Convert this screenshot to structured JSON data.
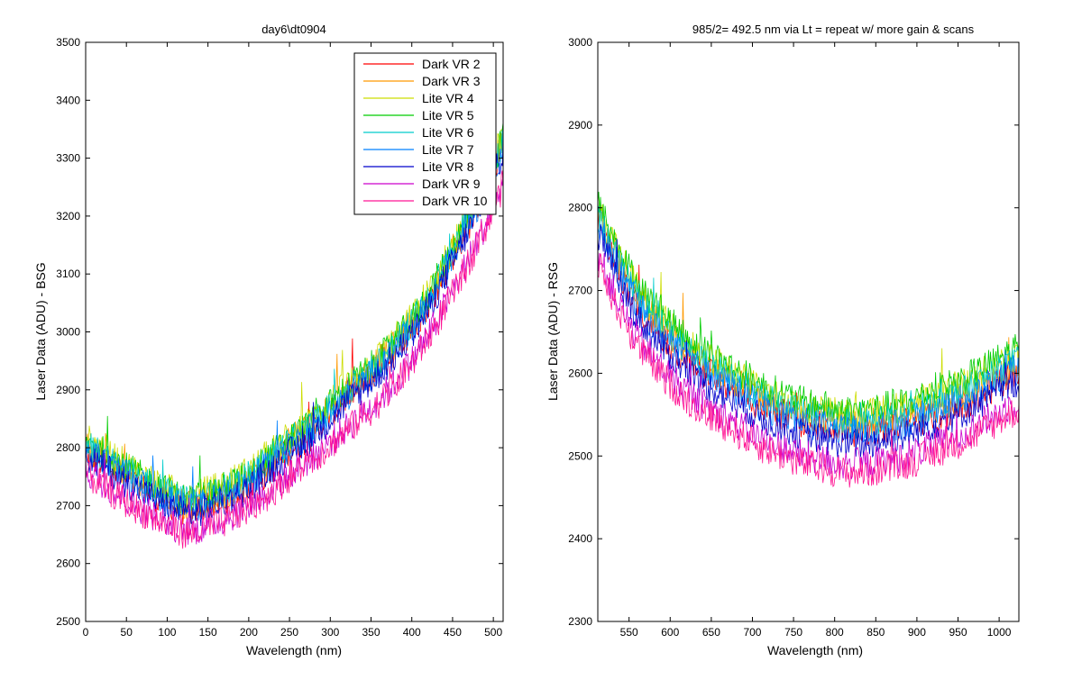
{
  "figure": {
    "charts": [
      {
        "title": "day6\\dt0904",
        "xlabel": "Wavelength (nm)",
        "ylabel": "Laser Data (ADU) - BSG"
      },
      {
        "title": "985/2= 492.5 nm via Lt = repeat w/ more gain & scans",
        "xlabel": "Wavelength (nm)",
        "ylabel": "Laser Data (ADU) - RSG"
      }
    ]
  },
  "chart_data": [
    {
      "type": "line",
      "title": "day6\\dt0904",
      "xlabel": "Wavelength (nm)",
      "ylabel": "Laser Data (ADU) - BSG",
      "xlim": [
        0,
        512
      ],
      "ylim": [
        2500,
        3500
      ],
      "xticks": [
        0,
        50,
        100,
        150,
        200,
        250,
        300,
        350,
        400,
        450,
        500
      ],
      "yticks": [
        2500,
        2600,
        2700,
        2800,
        2900,
        3000,
        3100,
        3200,
        3300,
        3400,
        3500
      ],
      "legend": {
        "placement": "top-right"
      },
      "grid": false,
      "x": [
        0,
        25,
        50,
        75,
        100,
        125,
        150,
        175,
        200,
        225,
        250,
        275,
        300,
        325,
        350,
        375,
        400,
        425,
        450,
        475,
        500,
        512
      ],
      "series": [
        {
          "name": "Dark VR 2",
          "color": "#ff0000",
          "values": [
            2790,
            2770,
            2745,
            2725,
            2705,
            2690,
            2700,
            2715,
            2735,
            2760,
            2795,
            2820,
            2860,
            2895,
            2925,
            2960,
            3005,
            3060,
            3130,
            3200,
            3275,
            3320
          ]
        },
        {
          "name": "Dark VR 3",
          "color": "#ff9900",
          "values": [
            2800,
            2780,
            2755,
            2735,
            2715,
            2700,
            2710,
            2725,
            2745,
            2775,
            2815,
            2840,
            2870,
            2905,
            2935,
            2970,
            3015,
            3070,
            3140,
            3210,
            3285,
            3330
          ]
        },
        {
          "name": "Lite VR 4",
          "color": "#ccdd00",
          "values": [
            2815,
            2795,
            2770,
            2750,
            2730,
            2715,
            2725,
            2740,
            2760,
            2790,
            2820,
            2845,
            2880,
            2915,
            2945,
            2980,
            3025,
            3080,
            3150,
            3220,
            3295,
            3340
          ]
        },
        {
          "name": "Lite VR 5",
          "color": "#00cc00",
          "values": [
            2810,
            2790,
            2765,
            2745,
            2725,
            2710,
            2720,
            2735,
            2755,
            2785,
            2815,
            2840,
            2875,
            2910,
            2940,
            2975,
            3020,
            3075,
            3145,
            3215,
            3290,
            3335
          ]
        },
        {
          "name": "Lite VR 6",
          "color": "#00cccc",
          "values": [
            2805,
            2785,
            2760,
            2740,
            2720,
            2705,
            2715,
            2730,
            2750,
            2780,
            2810,
            2835,
            2870,
            2905,
            2935,
            2970,
            3015,
            3070,
            3140,
            3210,
            3285,
            3330
          ]
        },
        {
          "name": "Lite VR 7",
          "color": "#0080ff",
          "values": [
            2795,
            2775,
            2750,
            2730,
            2710,
            2695,
            2705,
            2720,
            2740,
            2770,
            2800,
            2825,
            2860,
            2895,
            2925,
            2960,
            3005,
            3060,
            3130,
            3200,
            3275,
            3320
          ]
        },
        {
          "name": "Lite VR 8",
          "color": "#0000cc",
          "values": [
            2785,
            2765,
            2740,
            2720,
            2700,
            2685,
            2695,
            2710,
            2730,
            2760,
            2790,
            2815,
            2850,
            2885,
            2915,
            2950,
            2995,
            3050,
            3120,
            3190,
            3265,
            3310
          ]
        },
        {
          "name": "Dark VR 9",
          "color": "#cc00cc",
          "values": [
            2760,
            2735,
            2710,
            2690,
            2670,
            2655,
            2665,
            2680,
            2700,
            2725,
            2755,
            2780,
            2810,
            2840,
            2870,
            2905,
            2950,
            3005,
            3070,
            3140,
            3215,
            3260
          ]
        },
        {
          "name": "Dark VR 10",
          "color": "#ff1493",
          "values": [
            2755,
            2730,
            2705,
            2685,
            2665,
            2650,
            2660,
            2675,
            2695,
            2720,
            2750,
            2775,
            2805,
            2835,
            2865,
            2900,
            2945,
            3000,
            3065,
            3135,
            3210,
            3255
          ]
        }
      ]
    },
    {
      "type": "line",
      "title": "985/2= 492.5 nm via Lt = repeat w/ more gain & scans",
      "xlabel": "Wavelength (nm)",
      "ylabel": "Laser Data (ADU) - RSG",
      "xlim": [
        512,
        1024
      ],
      "ylim": [
        2300,
        3000
      ],
      "xticks": [
        550,
        600,
        650,
        700,
        750,
        800,
        850,
        900,
        950,
        1000
      ],
      "yticks": [
        2300,
        2400,
        2500,
        2600,
        2700,
        2800,
        2900,
        3000
      ],
      "grid": false,
      "x": [
        512,
        537,
        562,
        587,
        612,
        637,
        662,
        687,
        712,
        737,
        762,
        787,
        812,
        837,
        862,
        887,
        912,
        937,
        962,
        987,
        1012,
        1024
      ],
      "series": [
        {
          "color": "#ff0000",
          "values": [
            2785,
            2725,
            2680,
            2650,
            2625,
            2605,
            2590,
            2575,
            2560,
            2550,
            2540,
            2535,
            2530,
            2530,
            2535,
            2540,
            2545,
            2555,
            2565,
            2580,
            2595,
            2600
          ]
        },
        {
          "color": "#ff9900",
          "values": [
            2795,
            2735,
            2690,
            2660,
            2635,
            2615,
            2600,
            2585,
            2570,
            2560,
            2550,
            2545,
            2540,
            2540,
            2545,
            2550,
            2555,
            2565,
            2575,
            2590,
            2605,
            2610
          ]
        },
        {
          "color": "#ccdd00",
          "values": [
            2800,
            2745,
            2700,
            2670,
            2645,
            2625,
            2610,
            2595,
            2580,
            2570,
            2560,
            2555,
            2550,
            2550,
            2555,
            2560,
            2570,
            2580,
            2590,
            2605,
            2620,
            2625
          ]
        },
        {
          "color": "#00cc00",
          "values": [
            2805,
            2750,
            2705,
            2675,
            2650,
            2630,
            2615,
            2600,
            2585,
            2575,
            2565,
            2560,
            2555,
            2555,
            2560,
            2565,
            2575,
            2585,
            2595,
            2610,
            2625,
            2630
          ]
        },
        {
          "color": "#00cccc",
          "values": [
            2790,
            2735,
            2690,
            2660,
            2635,
            2615,
            2600,
            2585,
            2570,
            2560,
            2550,
            2545,
            2540,
            2540,
            2545,
            2550,
            2560,
            2570,
            2580,
            2595,
            2610,
            2615
          ]
        },
        {
          "color": "#0080ff",
          "values": [
            2780,
            2725,
            2680,
            2650,
            2625,
            2605,
            2590,
            2575,
            2560,
            2550,
            2540,
            2535,
            2530,
            2530,
            2535,
            2540,
            2550,
            2560,
            2570,
            2585,
            2600,
            2605
          ]
        },
        {
          "color": "#0000cc",
          "values": [
            2770,
            2710,
            2665,
            2635,
            2610,
            2590,
            2575,
            2560,
            2545,
            2535,
            2525,
            2520,
            2515,
            2515,
            2520,
            2525,
            2535,
            2545,
            2555,
            2570,
            2585,
            2590
          ]
        },
        {
          "color": "#cc00cc",
          "values": [
            2745,
            2685,
            2640,
            2610,
            2585,
            2565,
            2550,
            2535,
            2520,
            2510,
            2500,
            2495,
            2490,
            2490,
            2495,
            2500,
            2510,
            2520,
            2530,
            2545,
            2560,
            2565
          ]
        },
        {
          "color": "#ff1493",
          "values": [
            2735,
            2675,
            2630,
            2600,
            2575,
            2555,
            2540,
            2525,
            2510,
            2500,
            2490,
            2485,
            2480,
            2480,
            2485,
            2490,
            2500,
            2510,
            2520,
            2535,
            2550,
            2555
          ]
        }
      ]
    }
  ]
}
